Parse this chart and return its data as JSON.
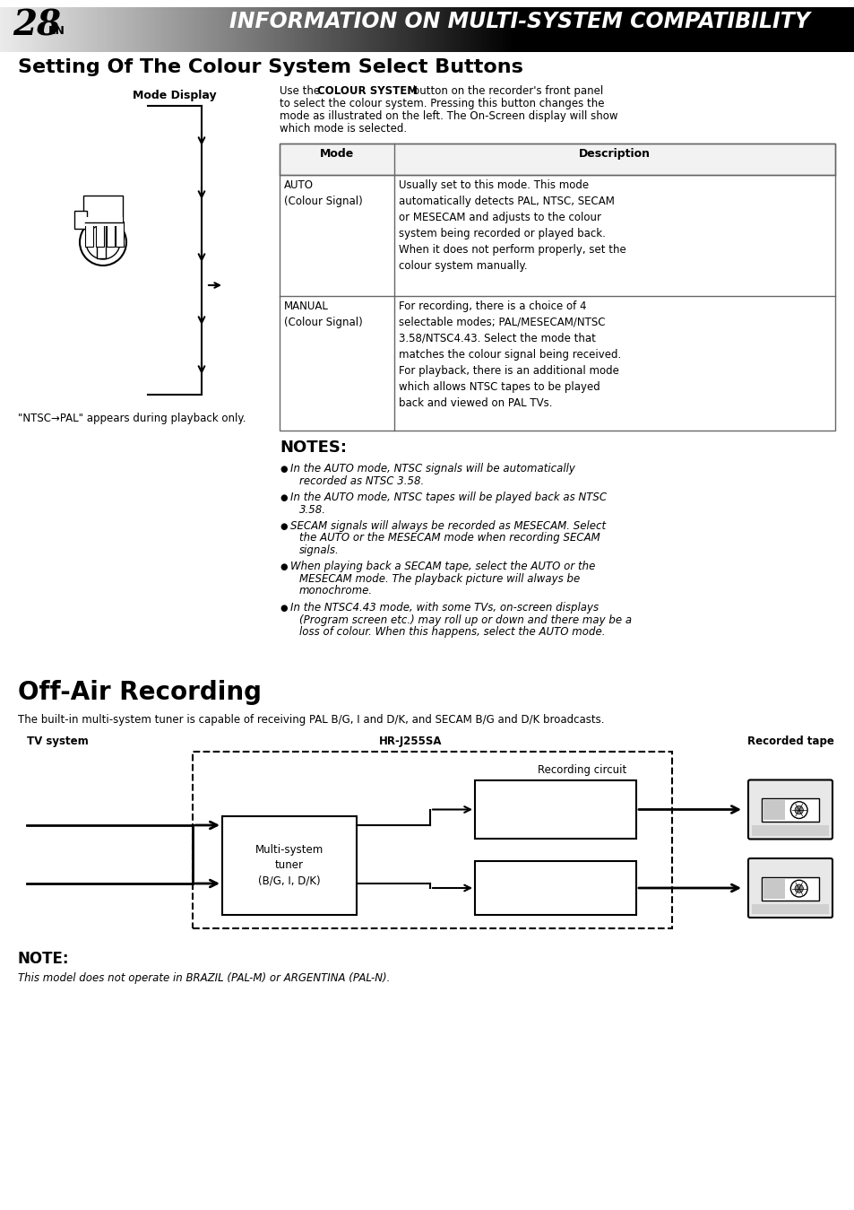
{
  "page_num": "28",
  "page_lang": "EN",
  "header_title": "INFORMATION ON MULTI-SYSTEM COMPATIBILITY",
  "section1_title": "Setting Of The Colour System Select Buttons",
  "section1_intro_plain": "Use the  button on the recorder's front panel\nto select the colour system. Pressing this button changes the\nmode as illustrated on the left. The On-Screen display will show\nwhich mode is selected.",
  "section1_intro_bold": "COLOUR SYSTEM",
  "mode_display_label": "Mode Display",
  "ntsc_pal_note": "\"NTSC→PAL\" appears during playback only.",
  "table_col1_header": "Mode",
  "table_col2_header": "Description",
  "row1_col1": "AUTO\n(Colour Signal)",
  "row1_col2": "Usually set to this mode. This mode\nautomatically detects PAL, NTSC, SECAM\nor MESECAM and adjusts to the colour\nsystem being recorded or played back.\nWhen it does not perform properly, set the\ncolour system manually.",
  "row2_col1": "MANUAL\n(Colour Signal)",
  "row2_col2": "For recording, there is a choice of 4\nselectable modes; PAL/MESECAM/NTSC\n3.58/NTSC4.43. Select the mode that\nmatches the colour signal being received.\nFor playback, there is an additional mode\nwhich allows NTSC tapes to be played\nback and viewed on PAL TVs.",
  "notes_title": "NOTES:",
  "notes": [
    "In the AUTO mode, NTSC signals will be automatically\nrecorded as NTSC 3.58.",
    "In the AUTO mode, NTSC tapes will be played back as NTSC\n3.58.",
    "SECAM signals will always be recorded as MESECAM. Select\nthe AUTO or the MESECAM mode when recording SECAM\nsignals.",
    "When playing back a SECAM tape, select the AUTO or the\nMESECAM mode. The playback picture will always be\nmonochrome.",
    "In the NTSC4.43 mode, with some TVs, on-screen displays\n(Program screen etc.) may roll up or down and there may be a\nloss of colour. When this happens, select the AUTO mode."
  ],
  "section2_title": "Off-Air Recording",
  "section2_intro": "The built-in multi-system tuner is capable of receiving PAL B/G, I and D/K, and SECAM B/G and D/K broadcasts.",
  "tv_system_label": "TV system",
  "hr_label": "HR-J255SA",
  "recorded_tape_label": "Recorded tape",
  "recording_circuit_label": "Recording circuit",
  "tuner_label": "Multi-system\ntuner\n(B/G, I, D/K)",
  "note2_title": "NOTE:",
  "note2_text": "This model does not operate in BRAZIL (PAL-M) or ARGENTINA (PAL-N).",
  "bg_color": "#ffffff",
  "text_color": "#000000"
}
